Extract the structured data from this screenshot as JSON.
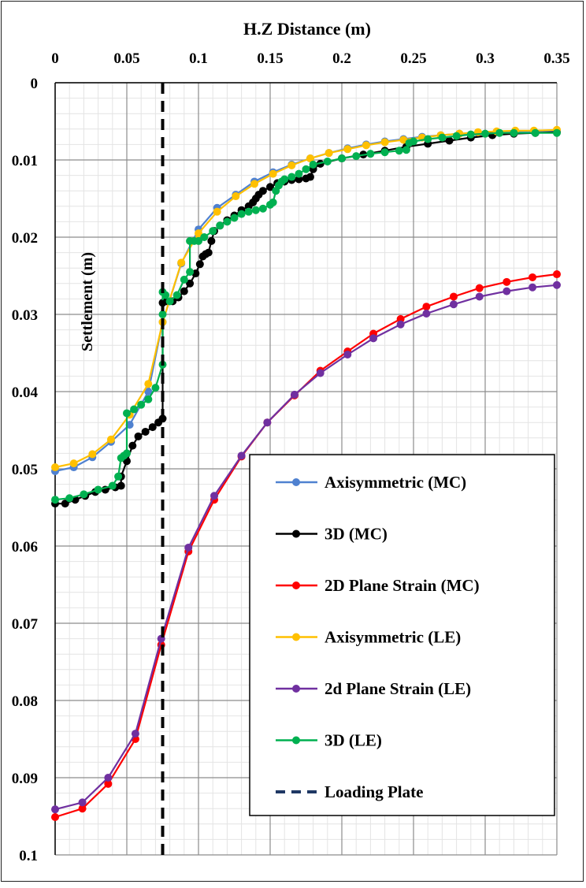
{
  "chart_data": {
    "type": "line",
    "title": "",
    "xlabel": "H.Z Distance (m)",
    "ylabel": "Settlement (m)",
    "xlim": [
      0,
      0.35
    ],
    "ylim": [
      0,
      0.1
    ],
    "y_reversed": true,
    "x_axis_position": "top",
    "x_ticks": [
      "0",
      "0.05",
      "0.1",
      "0.15",
      "0.2",
      "0.25",
      "0.3",
      "0.35"
    ],
    "y_ticks": [
      "0",
      "0.01",
      "0.02",
      "0.03",
      "0.04",
      "0.05",
      "0.06",
      "0.07",
      "0.08",
      "0.09",
      "0.1"
    ],
    "grid": true,
    "legend_position": "bottom-right",
    "series": [
      {
        "name": "Axisymmetric (MC)",
        "color": "#4f81d0",
        "x": [
          0,
          0.013,
          0.026,
          0.039,
          0.052,
          0.065,
          0.075,
          0.088,
          0.1,
          0.113,
          0.126,
          0.139,
          0.152,
          0.165,
          0.178,
          0.191,
          0.204,
          0.217,
          0.23,
          0.243,
          0.256,
          0.269,
          0.282,
          0.295,
          0.308,
          0.321,
          0.334,
          0.35
        ],
        "y": [
          0.0503,
          0.0498,
          0.0485,
          0.0465,
          0.0443,
          0.04,
          0.031,
          0.0234,
          0.019,
          0.0162,
          0.0145,
          0.0128,
          0.0116,
          0.0106,
          0.0098,
          0.0091,
          0.0085,
          0.008,
          0.0076,
          0.0073,
          0.007,
          0.0068,
          0.0066,
          0.0065,
          0.0064,
          0.0063,
          0.0063,
          0.0062
        ]
      },
      {
        "name": "3D (MC)",
        "color": "#000000",
        "x": [
          0,
          0.007,
          0.014,
          0.021,
          0.028,
          0.035,
          0.042,
          0.046,
          0.046,
          0.05,
          0.054,
          0.058,
          0.063,
          0.068,
          0.072,
          0.075,
          0.075,
          0.078,
          0.082,
          0.086,
          0.09,
          0.094,
          0.098,
          0.101,
          0.103,
          0.105,
          0.107,
          0.109,
          0.111,
          0.115,
          0.12,
          0.125,
          0.13,
          0.135,
          0.138,
          0.14,
          0.142,
          0.145,
          0.15,
          0.155,
          0.16,
          0.165,
          0.17,
          0.175,
          0.178,
          0.18,
          0.185,
          0.2,
          0.215,
          0.23,
          0.245,
          0.26,
          0.275,
          0.29,
          0.305,
          0.32,
          0.335,
          0.35
        ],
        "y": [
          0.0545,
          0.0545,
          0.054,
          0.0535,
          0.053,
          0.0527,
          0.0524,
          0.0522,
          0.051,
          0.049,
          0.047,
          0.0458,
          0.0452,
          0.0446,
          0.044,
          0.0435,
          0.0285,
          0.0283,
          0.0283,
          0.0278,
          0.027,
          0.026,
          0.0247,
          0.0235,
          0.0225,
          0.0222,
          0.022,
          0.0205,
          0.0192,
          0.0185,
          0.0178,
          0.0172,
          0.0165,
          0.016,
          0.0155,
          0.015,
          0.0145,
          0.014,
          0.0135,
          0.013,
          0.0128,
          0.0126,
          0.0125,
          0.0124,
          0.0122,
          0.0112,
          0.0105,
          0.0098,
          0.0093,
          0.0088,
          0.0083,
          0.0079,
          0.0075,
          0.0071,
          0.0068,
          0.0066,
          0.0065,
          0.0064
        ]
      },
      {
        "name": "2D Plane Strain (MC)",
        "color": "#ff0000",
        "x": [
          0,
          0.019,
          0.037,
          0.056,
          0.074,
          0.093,
          0.111,
          0.13,
          0.148,
          0.167,
          0.185,
          0.204,
          0.222,
          0.241,
          0.259,
          0.278,
          0.296,
          0.315,
          0.333,
          0.35
        ],
        "y": [
          0.0951,
          0.094,
          0.0908,
          0.085,
          0.0728,
          0.0607,
          0.054,
          0.0484,
          0.044,
          0.0405,
          0.0373,
          0.0348,
          0.0325,
          0.0306,
          0.029,
          0.0277,
          0.0266,
          0.0258,
          0.0252,
          0.0248
        ]
      },
      {
        "name": "Axisymmetric (LE)",
        "color": "#ffc000",
        "x": [
          0,
          0.013,
          0.026,
          0.039,
          0.052,
          0.065,
          0.075,
          0.088,
          0.1,
          0.113,
          0.126,
          0.139,
          0.152,
          0.165,
          0.178,
          0.191,
          0.204,
          0.217,
          0.23,
          0.243,
          0.256,
          0.269,
          0.282,
          0.295,
          0.308,
          0.321,
          0.334,
          0.35
        ],
        "y": [
          0.0498,
          0.0493,
          0.0481,
          0.0462,
          0.043,
          0.039,
          0.031,
          0.0233,
          0.0195,
          0.0167,
          0.0147,
          0.0131,
          0.0118,
          0.0107,
          0.0098,
          0.0091,
          0.0086,
          0.0081,
          0.0077,
          0.0074,
          0.0071,
          0.0068,
          0.0066,
          0.0064,
          0.0063,
          0.0062,
          0.0062,
          0.0061
        ]
      },
      {
        "name": "2d Plane Strain (LE)",
        "color": "#7030a0",
        "x": [
          0,
          0.019,
          0.037,
          0.056,
          0.074,
          0.093,
          0.111,
          0.13,
          0.148,
          0.167,
          0.185,
          0.204,
          0.222,
          0.241,
          0.259,
          0.278,
          0.296,
          0.315,
          0.333,
          0.35
        ],
        "y": [
          0.0941,
          0.0932,
          0.09,
          0.0843,
          0.072,
          0.0602,
          0.0535,
          0.0483,
          0.044,
          0.0404,
          0.0376,
          0.0352,
          0.0331,
          0.0313,
          0.0299,
          0.0287,
          0.0277,
          0.027,
          0.0265,
          0.0262
        ]
      },
      {
        "name": "3D (LE)",
        "color": "#00b050",
        "x": [
          0,
          0.01,
          0.02,
          0.03,
          0.04,
          0.044,
          0.046,
          0.048,
          0.05,
          0.05,
          0.055,
          0.06,
          0.065,
          0.07,
          0.075,
          0.075,
          0.075,
          0.077,
          0.08,
          0.085,
          0.09,
          0.094,
          0.094,
          0.097,
          0.1,
          0.104,
          0.11,
          0.115,
          0.12,
          0.125,
          0.13,
          0.135,
          0.14,
          0.145,
          0.15,
          0.152,
          0.154,
          0.156,
          0.158,
          0.16,
          0.165,
          0.17,
          0.175,
          0.18,
          0.19,
          0.2,
          0.21,
          0.22,
          0.23,
          0.24,
          0.245,
          0.247,
          0.25,
          0.26,
          0.27,
          0.28,
          0.29,
          0.3,
          0.31,
          0.32,
          0.335,
          0.35
        ],
        "y": [
          0.054,
          0.0538,
          0.0533,
          0.0527,
          0.0522,
          0.051,
          0.0486,
          0.0483,
          0.048,
          0.0428,
          0.0423,
          0.0417,
          0.041,
          0.0395,
          0.0365,
          0.03,
          0.0271,
          0.0275,
          0.0283,
          0.0275,
          0.0255,
          0.0245,
          0.0205,
          0.0205,
          0.0205,
          0.02,
          0.0192,
          0.0185,
          0.018,
          0.0175,
          0.017,
          0.0167,
          0.0165,
          0.0163,
          0.0158,
          0.0155,
          0.014,
          0.0133,
          0.0128,
          0.0125,
          0.0122,
          0.0118,
          0.0112,
          0.0106,
          0.0102,
          0.0098,
          0.0095,
          0.0092,
          0.009,
          0.0088,
          0.0087,
          0.0078,
          0.0076,
          0.0073,
          0.0071,
          0.0069,
          0.0067,
          0.0066,
          0.0065,
          0.0065,
          0.0065,
          0.0065
        ]
      }
    ],
    "loading_plate": {
      "name": "Loading Plate",
      "color": "#000000",
      "x": 0.075
    }
  }
}
